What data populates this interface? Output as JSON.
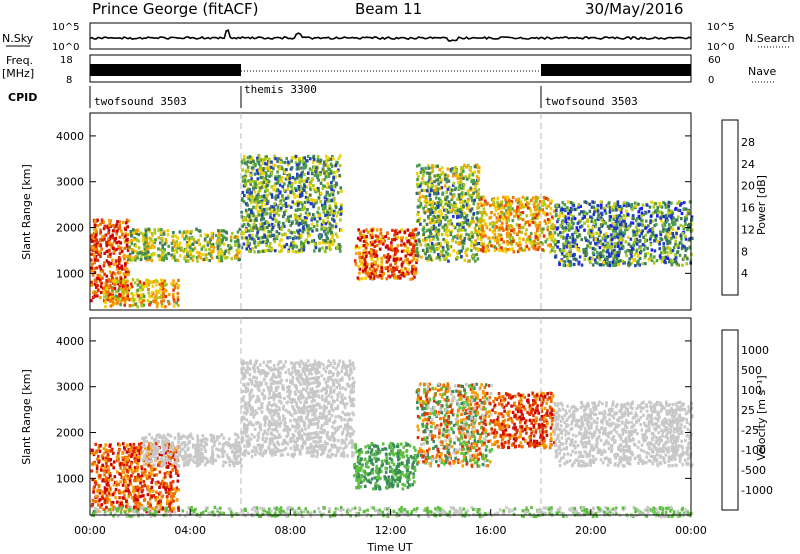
{
  "header": {
    "station": "Prince George (fitACF)",
    "beam": "Beam 11",
    "date": "30/May/2016"
  },
  "strip_panels": {
    "noise": {
      "left_label": "N.Sky",
      "right_label": "N.Search",
      "left_ticks": [
        "10^5",
        "10^0"
      ],
      "right_ticks": [
        "10^5",
        "10^0"
      ]
    },
    "freq": {
      "left_label": "Freq.",
      "left_unit": "[MHz]",
      "right_label": "Nave",
      "left_ticks": [
        "18",
        "8"
      ],
      "right_ticks": [
        "60",
        "0"
      ]
    },
    "cpid": {
      "label": "CPID",
      "segments": [
        {
          "label": "twofsound 3503",
          "start_hour": 0
        },
        {
          "label": "themis 3300",
          "start_hour": 6
        },
        {
          "label": "twofsound 3503",
          "start_hour": 18
        }
      ]
    }
  },
  "chart_data": [
    {
      "type": "heatmap",
      "panel": "power",
      "ylabel": "Slant Range [km]",
      "xlabel": "",
      "ylim": [
        200,
        4500
      ],
      "xlim": [
        0,
        24
      ],
      "yticks": [
        "1000",
        "2000",
        "3000",
        "4000"
      ],
      "colorbar": {
        "label": "Power [dB]",
        "ticks": [
          "4",
          "8",
          "12",
          "16",
          "20",
          "24",
          "28"
        ],
        "colors": [
          "#1a1aff",
          "#1f3fbf",
          "#3d7a5a",
          "#4a9e4a",
          "#a8c820",
          "#f0d000",
          "#f5a000",
          "#f07000",
          "#e03000",
          "#d00000"
        ]
      },
      "echo_regions": [
        {
          "x": [
            0.0,
            1.5
          ],
          "y": [
            400,
            2200
          ],
          "level": 0.85
        },
        {
          "x": [
            0.5,
            3.5
          ],
          "y": [
            300,
            900
          ],
          "level": 0.6
        },
        {
          "x": [
            1.5,
            6.0
          ],
          "y": [
            1300,
            2000
          ],
          "level": 0.45
        },
        {
          "x": [
            6.0,
            10.0
          ],
          "y": [
            1500,
            3600
          ],
          "level": 0.35
        },
        {
          "x": [
            10.5,
            13.0
          ],
          "y": [
            900,
            2000
          ],
          "level": 0.8
        },
        {
          "x": [
            13.0,
            15.5
          ],
          "y": [
            1300,
            3400
          ],
          "level": 0.4
        },
        {
          "x": [
            15.5,
            18.5
          ],
          "y": [
            1500,
            2700
          ],
          "level": 0.6
        },
        {
          "x": [
            18.5,
            24.0
          ],
          "y": [
            1200,
            2600
          ],
          "level": 0.3
        }
      ]
    },
    {
      "type": "heatmap",
      "panel": "velocity",
      "ylabel": "Slant Range [km]",
      "xlabel": "Time UT",
      "ylim": [
        200,
        4500
      ],
      "xlim": [
        0,
        24
      ],
      "yticks": [
        "1000",
        "2000",
        "3000",
        "4000"
      ],
      "xticks": [
        "00:00",
        "04:00",
        "08:00",
        "12:00",
        "16:00",
        "20:00",
        "00:00"
      ],
      "colorbar": {
        "label": "Velocity [m s⁻¹]",
        "ticks": [
          "1000",
          "500",
          "100",
          "25",
          "-25",
          "-100",
          "-500",
          "-1000"
        ],
        "colors": [
          "#2a3fbf",
          "#3a66a8",
          "#3a8a5a",
          "#5ec040",
          "#c8c8c8",
          "#f5a000",
          "#f07000",
          "#e03000",
          "#d00000"
        ]
      },
      "echo_regions": [
        {
          "x": [
            0.0,
            3.5
          ],
          "y": [
            300,
            1800
          ],
          "velocity": "negative"
        },
        {
          "x": [
            2.0,
            6.0
          ],
          "y": [
            1300,
            2000
          ],
          "velocity": "near-zero"
        },
        {
          "x": [
            6.0,
            10.5
          ],
          "y": [
            1500,
            3600
          ],
          "velocity": "near-zero"
        },
        {
          "x": [
            10.5,
            13.0
          ],
          "y": [
            800,
            1800
          ],
          "velocity": "positive"
        },
        {
          "x": [
            13.0,
            16.0
          ],
          "y": [
            1300,
            3100
          ],
          "velocity": "mixed"
        },
        {
          "x": [
            16.0,
            18.5
          ],
          "y": [
            1700,
            2900
          ],
          "velocity": "negative"
        },
        {
          "x": [
            18.5,
            24.0
          ],
          "y": [
            1300,
            2700
          ],
          "velocity": "near-zero"
        },
        {
          "x": [
            0.0,
            24.0
          ],
          "y": [
            200,
            400
          ],
          "velocity": "ground-scatter"
        }
      ]
    }
  ]
}
